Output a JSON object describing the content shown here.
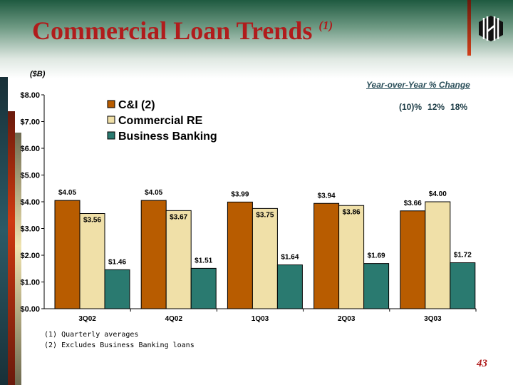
{
  "header": {
    "title": "Commercial Loan Trends",
    "title_note": "(1)"
  },
  "units": "($B)",
  "yoy": {
    "label": "Year-over-Year % Change",
    "values": [
      "(10)%",
      "12%",
      "18%"
    ]
  },
  "footnotes": [
    "(1) Quarterly averages",
    "(2) Excludes Business Banking loans"
  ],
  "page_number": "43",
  "chart_data": {
    "type": "bar",
    "categories": [
      "3Q02",
      "4Q02",
      "1Q03",
      "2Q03",
      "3Q03"
    ],
    "series": [
      {
        "name": "C&I (2)",
        "color": "#b85c00",
        "values": [
          4.05,
          4.05,
          3.99,
          3.94,
          3.66
        ],
        "labels": [
          "$4.05",
          "$4.05",
          "$3.99",
          "$3.94",
          "$3.66"
        ]
      },
      {
        "name": "Commercial RE",
        "color": "#f0e0a8",
        "values": [
          3.56,
          3.67,
          3.75,
          3.86,
          4.0
        ],
        "labels": [
          "$3.56",
          "$3.67",
          "$3.75",
          "$3.86",
          "$4.00"
        ]
      },
      {
        "name": "Business Banking",
        "color": "#2a7a70",
        "values": [
          1.46,
          1.51,
          1.64,
          1.69,
          1.72
        ],
        "labels": [
          "$1.46",
          "$1.51",
          "$1.64",
          "$1.69",
          "$1.72"
        ]
      }
    ],
    "yticks": [
      "$0.00",
      "$1.00",
      "$2.00",
      "$3.00",
      "$4.00",
      "$5.00",
      "$6.00",
      "$7.00",
      "$8.00"
    ],
    "ylim": [
      0,
      8
    ],
    "legend": "top-left"
  }
}
